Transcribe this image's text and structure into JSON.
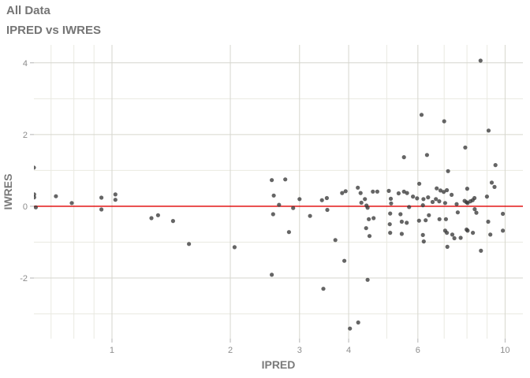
{
  "header": {
    "title": "All Data",
    "subtitle": "IPRED vs IWRES"
  },
  "colors": {
    "background": "#ffffff",
    "title_text": "#757575",
    "axis_text": "#8c8c8c",
    "axis_title_text": "#7a7a7a",
    "grid_major": "#d6d6ce",
    "grid_minor": "#e9e9e1",
    "tick_mark": "#b3b3b3",
    "point": "#3a3a3a",
    "reference_line": "#e00000"
  },
  "chart_data": {
    "type": "scatter",
    "title": "All Data",
    "subtitle": "IPRED vs IWRES",
    "xlabel": "IPRED",
    "ylabel": "IWRES",
    "x_scale": "log10",
    "xlim": [
      0.633,
      11.1
    ],
    "ylim": [
      -3.69,
      4.5
    ],
    "x_major_ticks": [
      1,
      2,
      3,
      4,
      6,
      10
    ],
    "x_minor_ticks": [
      0.7,
      0.8,
      0.9,
      5,
      7,
      8,
      9
    ],
    "y_major_ticks": [
      -2,
      0,
      2,
      4
    ],
    "y_minor_ticks": [
      -3,
      -1,
      1,
      3
    ],
    "grid": true,
    "legend_position": "none",
    "reference_line": {
      "y": 0
    },
    "points": [
      [
        0.633,
        1.08
      ],
      [
        0.634,
        0.33
      ],
      [
        0.634,
        0.25
      ],
      [
        0.64,
        -0.03
      ],
      [
        0.72,
        0.28
      ],
      [
        0.79,
        0.09
      ],
      [
        0.94,
        0.24
      ],
      [
        0.94,
        -0.09
      ],
      [
        1.02,
        0.33
      ],
      [
        1.02,
        0.18
      ],
      [
        1.26,
        -0.33
      ],
      [
        1.31,
        -0.25
      ],
      [
        1.43,
        -0.41
      ],
      [
        1.57,
        -1.05
      ],
      [
        2.05,
        -1.14
      ],
      [
        2.55,
        0.73
      ],
      [
        2.76,
        0.75
      ],
      [
        2.58,
        0.3
      ],
      [
        2.66,
        0.04
      ],
      [
        2.89,
        -0.05
      ],
      [
        2.57,
        -0.22
      ],
      [
        3.0,
        0.2
      ],
      [
        3.19,
        -0.27
      ],
      [
        2.82,
        -0.72
      ],
      [
        2.55,
        -1.91
      ],
      [
        3.45,
        -2.3
      ],
      [
        3.42,
        0.17
      ],
      [
        3.52,
        0.23
      ],
      [
        3.53,
        -0.1
      ],
      [
        3.85,
        0.37
      ],
      [
        3.93,
        0.42
      ],
      [
        4.22,
        0.52
      ],
      [
        4.29,
        0.37
      ],
      [
        4.31,
        0.1
      ],
      [
        4.4,
        0.2
      ],
      [
        4.44,
        0.02
      ],
      [
        4.47,
        -0.04
      ],
      [
        4.61,
        0.41
      ],
      [
        4.73,
        0.41
      ],
      [
        5.06,
        0.43
      ],
      [
        5.12,
        0.21
      ],
      [
        5.13,
        0.08
      ],
      [
        5.36,
        0.36
      ],
      [
        5.53,
        0.41
      ],
      [
        5.63,
        0.37
      ],
      [
        5.83,
        0.27
      ],
      [
        5.97,
        0.22
      ],
      [
        6.05,
        0.63
      ],
      [
        6.2,
        0.2
      ],
      [
        6.18,
        0.03
      ],
      [
        5.7,
        -0.02
      ],
      [
        4.5,
        -0.36
      ],
      [
        4.63,
        -0.33
      ],
      [
        5.1,
        -0.2
      ],
      [
        5.42,
        -0.22
      ],
      [
        5.09,
        -0.5
      ],
      [
        5.46,
        -0.43
      ],
      [
        5.62,
        -0.46
      ],
      [
        6.04,
        -0.4
      ],
      [
        4.43,
        -0.61
      ],
      [
        4.52,
        -0.83
      ],
      [
        5.1,
        -0.74
      ],
      [
        5.46,
        -0.77
      ],
      [
        6.18,
        -0.8
      ],
      [
        6.21,
        -0.98
      ],
      [
        3.7,
        -0.94
      ],
      [
        3.9,
        -1.52
      ],
      [
        4.47,
        -2.05
      ],
      [
        4.23,
        -3.24
      ],
      [
        4.03,
        -3.41
      ],
      [
        8.66,
        4.06
      ],
      [
        6.13,
        2.55
      ],
      [
        7.0,
        2.37
      ],
      [
        9.08,
        2.11
      ],
      [
        7.92,
        1.64
      ],
      [
        6.33,
        1.43
      ],
      [
        5.53,
        1.37
      ],
      [
        9.45,
        1.15
      ],
      [
        7.16,
        0.98
      ],
      [
        6.37,
        0.25
      ],
      [
        6.54,
        0.12
      ],
      [
        6.67,
        0.2
      ],
      [
        6.8,
        0.14
      ],
      [
        6.7,
        0.5
      ],
      [
        6.85,
        0.44
      ],
      [
        6.98,
        0.4
      ],
      [
        7.11,
        0.45
      ],
      [
        7.31,
        0.32
      ],
      [
        7.04,
        0.09
      ],
      [
        7.53,
        0.06
      ],
      [
        7.89,
        0.15
      ],
      [
        7.98,
        0.11
      ],
      [
        8.03,
        0.09
      ],
      [
        8.16,
        0.14
      ],
      [
        8.27,
        0.17
      ],
      [
        8.36,
        0.23
      ],
      [
        8.01,
        0.49
      ],
      [
        8.99,
        0.27
      ],
      [
        9.25,
        0.66
      ],
      [
        9.4,
        0.54
      ],
      [
        8.37,
        -0.08
      ],
      [
        8.45,
        -0.18
      ],
      [
        7.58,
        -0.17
      ],
      [
        6.4,
        -0.25
      ],
      [
        9.87,
        -0.21
      ],
      [
        9.06,
        -0.43
      ],
      [
        6.81,
        -0.36
      ],
      [
        7.07,
        -0.36
      ],
      [
        6.28,
        -0.39
      ],
      [
        7.04,
        -0.68
      ],
      [
        7.11,
        -0.74
      ],
      [
        7.34,
        -0.79
      ],
      [
        7.43,
        -0.89
      ],
      [
        7.71,
        -0.88
      ],
      [
        7.98,
        -0.65
      ],
      [
        8.03,
        -0.68
      ],
      [
        8.28,
        -0.74
      ],
      [
        9.17,
        -0.79
      ],
      [
        9.87,
        -0.68
      ],
      [
        7.13,
        -1.13
      ],
      [
        8.68,
        -1.24
      ]
    ]
  }
}
